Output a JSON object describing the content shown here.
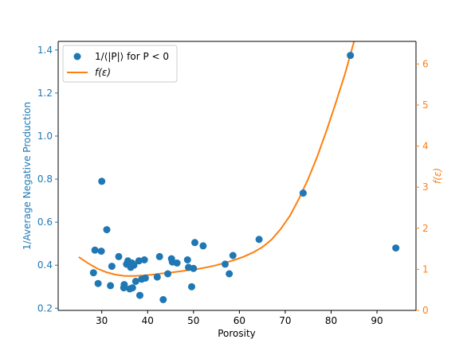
{
  "chart_data": {
    "type": "scatter",
    "title": "",
    "xlabel": "Porosity",
    "ylabel_left": "1/Average Negative Production",
    "ylabel_right": "f(ε)",
    "xlim": [
      20.5,
      98.5
    ],
    "ylim_left": [
      0.19,
      1.44
    ],
    "ylim_right": [
      0,
      6.55
    ],
    "x_ticks": [
      30,
      40,
      50,
      60,
      70,
      80,
      90
    ],
    "y_ticks_left": [
      0.2,
      0.4,
      0.6,
      0.8,
      1.0,
      1.2,
      1.4
    ],
    "y_ticks_right": [
      0,
      1,
      2,
      3,
      4,
      5,
      6
    ],
    "x_tick_labels": [
      "30",
      "40",
      "50",
      "60",
      "70",
      "80",
      "90"
    ],
    "y_tick_labels_left": [
      "0.2",
      "0.4",
      "0.6",
      "0.8",
      "1.0",
      "1.2",
      "1.4"
    ],
    "y_tick_labels_right": [
      "0",
      "1",
      "2",
      "3",
      "4",
      "5",
      "6"
    ],
    "grid": false,
    "legend_position": "top-left",
    "colors": {
      "scatter": "#1f77b4",
      "curve": "#ff7f0e",
      "axes": "#000000"
    },
    "series": [
      {
        "name": "1/⟨|P|⟩ for P < 0",
        "axis": "left",
        "kind": "scatter",
        "points": [
          [
            84.2,
            1.375
          ],
          [
            94.1,
            0.48
          ],
          [
            73.9,
            0.735
          ],
          [
            64.3,
            0.52
          ],
          [
            58.6,
            0.445
          ],
          [
            57.8,
            0.36
          ],
          [
            56.9,
            0.405
          ],
          [
            52.1,
            0.49
          ],
          [
            50.3,
            0.505
          ],
          [
            50.0,
            0.385
          ],
          [
            49.6,
            0.3
          ],
          [
            48.9,
            0.39
          ],
          [
            48.7,
            0.425
          ],
          [
            46.4,
            0.41
          ],
          [
            45.4,
            0.415
          ],
          [
            45.2,
            0.43
          ],
          [
            44.4,
            0.36
          ],
          [
            43.4,
            0.24
          ],
          [
            42.6,
            0.44
          ],
          [
            42.1,
            0.345
          ],
          [
            39.5,
            0.34
          ],
          [
            39.3,
            0.425
          ],
          [
            38.7,
            0.335
          ],
          [
            38.1,
            0.42
          ],
          [
            38.3,
            0.26
          ],
          [
            37.4,
            0.325
          ],
          [
            37.0,
            0.4
          ],
          [
            36.7,
            0.295
          ],
          [
            36.3,
            0.39
          ],
          [
            36.6,
            0.41
          ],
          [
            36.1,
            0.29
          ],
          [
            35.7,
            0.42
          ],
          [
            35.4,
            0.405
          ],
          [
            34.9,
            0.31
          ],
          [
            34.8,
            0.295
          ],
          [
            33.7,
            0.44
          ],
          [
            32.2,
            0.395
          ],
          [
            31.9,
            0.305
          ],
          [
            31.1,
            0.565
          ],
          [
            30.0,
            0.79
          ],
          [
            29.9,
            0.465
          ],
          [
            29.2,
            0.315
          ],
          [
            28.5,
            0.47
          ],
          [
            28.2,
            0.365
          ]
        ]
      },
      {
        "name": "f(ε)",
        "axis": "right",
        "kind": "line",
        "points": [
          [
            25,
            1.3
          ],
          [
            27,
            1.15
          ],
          [
            29,
            1.02
          ],
          [
            31,
            0.93
          ],
          [
            33,
            0.87
          ],
          [
            35,
            0.84
          ],
          [
            37,
            0.84
          ],
          [
            39,
            0.85
          ],
          [
            41,
            0.87
          ],
          [
            43,
            0.9
          ],
          [
            45,
            0.92
          ],
          [
            47,
            0.95
          ],
          [
            49,
            0.98
          ],
          [
            51,
            1.01
          ],
          [
            53,
            1.05
          ],
          [
            55,
            1.1
          ],
          [
            57,
            1.16
          ],
          [
            59,
            1.23
          ],
          [
            61,
            1.31
          ],
          [
            63,
            1.41
          ],
          [
            65,
            1.54
          ],
          [
            67,
            1.72
          ],
          [
            69,
            1.98
          ],
          [
            71,
            2.3
          ],
          [
            73,
            2.72
          ],
          [
            75,
            3.2
          ],
          [
            77,
            3.75
          ],
          [
            79,
            4.38
          ],
          [
            81,
            5.05
          ],
          [
            83,
            5.75
          ],
          [
            85,
            6.55
          ],
          [
            86.5,
            7.2
          ]
        ]
      }
    ]
  }
}
